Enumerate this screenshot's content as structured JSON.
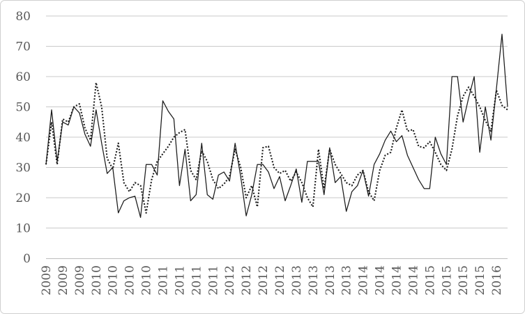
{
  "chart_data": {
    "type": "line",
    "title": "",
    "xlabel": "",
    "ylabel": "",
    "y_axis": {
      "min": 0,
      "max": 80,
      "step": 10,
      "tick_labels": [
        "0",
        "10",
        "20",
        "30",
        "40",
        "50",
        "60",
        "70",
        "80"
      ]
    },
    "x_tick_labels": [
      "2009",
      "2009",
      "2009",
      "2010",
      "2010",
      "2010",
      "2010",
      "2011",
      "2011",
      "2011",
      "2011",
      "2012",
      "2012",
      "2012",
      "2012",
      "2013",
      "2013",
      "2013",
      "2013",
      "2014",
      "2014",
      "2014",
      "2014",
      "2015",
      "2015",
      "2015",
      "2015",
      "2016"
    ],
    "x_tick_every_n_points": 3,
    "points_per_series": 84,
    "grid": "horizontal-on",
    "legend": "none",
    "colors": {
      "line": "#1a1a1a",
      "gridline": "#c9c9c9",
      "axis_line": "#bdbdbd",
      "tick_label": "#595959",
      "frame_border": "#cfcfcf",
      "background": "#ffffff"
    },
    "series": [
      {
        "name": "series-solid",
        "style": "solid",
        "values": [
          31,
          49,
          32,
          45,
          44,
          50,
          48,
          41,
          37,
          49,
          38,
          28,
          30,
          15,
          19,
          20,
          20.5,
          13.5,
          31,
          31,
          27.5,
          52,
          48.5,
          46,
          24,
          36,
          19,
          21,
          38,
          21,
          19.5,
          27.5,
          28.5,
          25.5,
          38,
          27,
          14,
          21,
          31,
          31,
          28.5,
          23,
          27,
          19,
          24,
          29.5,
          18.5,
          32,
          32,
          32,
          21,
          36.5,
          25,
          27,
          15.5,
          22,
          24,
          29,
          20.5,
          31,
          34.5,
          39,
          42,
          38.5,
          40.5,
          34,
          30,
          26,
          23,
          23,
          40,
          34.5,
          31,
          60,
          60,
          45,
          53,
          60,
          35,
          50,
          39,
          56,
          74,
          50
        ]
      },
      {
        "name": "series-dotted",
        "style": "dotted",
        "values": [
          31,
          45,
          31,
          46,
          45,
          50,
          51,
          43,
          39,
          58,
          50,
          33,
          29.5,
          38,
          25,
          22,
          25,
          24,
          15,
          26,
          32,
          34.5,
          37,
          40,
          41.5,
          42.5,
          29,
          26,
          35.5,
          32,
          26,
          23,
          24.5,
          27,
          36,
          30,
          20,
          24,
          17,
          36.5,
          37,
          30,
          28,
          29,
          25.5,
          28.5,
          25,
          20,
          17,
          36,
          23,
          36,
          31,
          28,
          25,
          24,
          27.5,
          29,
          22,
          19,
          29,
          34,
          35,
          43,
          49,
          42,
          42.5,
          37,
          36.5,
          38.5,
          35,
          31,
          29,
          36,
          47,
          53.5,
          56.5,
          53.5,
          50,
          45.5,
          42,
          55.5,
          50.5,
          49
        ]
      }
    ]
  }
}
